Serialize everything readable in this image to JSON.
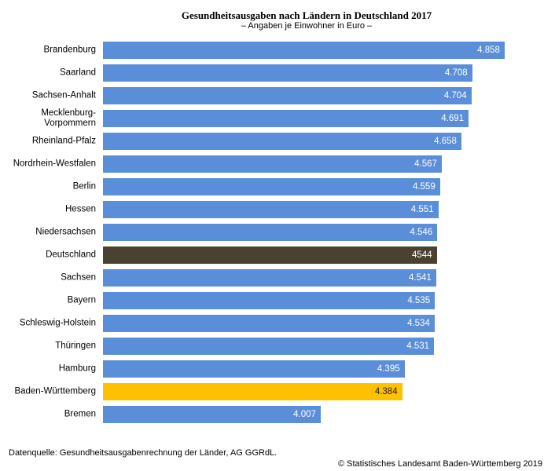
{
  "chart_data": {
    "type": "barh",
    "title": "Gesundheitsausgaben nach Ländern in Deutschland 2017",
    "subtitle": "– Angaben je Einwohner in Euro –",
    "categories": [
      "Brandenburg",
      "Saarland",
      "Sachsen-Anhalt",
      "Mecklenburg-Vorpommern",
      "Rheinland-Pfalz",
      "Nordrhein-Westfalen",
      "Berlin",
      "Hessen",
      "Niedersachsen",
      "Deutschland",
      "Sachsen",
      "Bayern",
      "Schleswig-Holstein",
      "Thüringen",
      "Hamburg",
      "Baden-Württemberg",
      "Bremen"
    ],
    "values": [
      4858,
      4708,
      4704,
      4691,
      4658,
      4567,
      4559,
      4551,
      4546,
      4544,
      4541,
      4535,
      4534,
      4531,
      4395,
      4384,
      4007
    ],
    "value_labels": [
      "4.858",
      "4.708",
      "4.704",
      "4.691",
      "4.658",
      "4.567",
      "4.559",
      "4.551",
      "4.546",
      "4544",
      "4.541",
      "4.535",
      "4.534",
      "4.531",
      "4.395",
      "4.384",
      "4.007"
    ],
    "colors": [
      "#5a8ed8",
      "#5a8ed8",
      "#5a8ed8",
      "#5a8ed8",
      "#5a8ed8",
      "#5a8ed8",
      "#5a8ed8",
      "#5a8ed8",
      "#5a8ed8",
      "#4a4230",
      "#5a8ed8",
      "#5a8ed8",
      "#5a8ed8",
      "#5a8ed8",
      "#5a8ed8",
      "#ffc000",
      "#5a8ed8"
    ],
    "xlim": [
      3000,
      5000
    ],
    "source": "Datenquelle: Gesundheitsausgabenrechnung der Länder, AG GGRdL.",
    "credit": "© Statistisches Landesamt Baden-Württemberg 2019"
  }
}
